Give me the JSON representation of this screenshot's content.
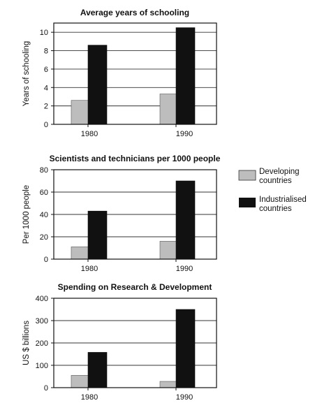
{
  "chart_data": [
    {
      "type": "bar",
      "title": "Average years of schooling",
      "xlabel": "",
      "ylabel": "Years of schooling",
      "categories": [
        "1980",
        "1990"
      ],
      "ylim": [
        0,
        11
      ],
      "yticks": [
        0,
        2,
        4,
        6,
        8,
        10
      ],
      "grid": true,
      "series": [
        {
          "name": "Developing countries",
          "values": [
            2.6,
            3.3
          ]
        },
        {
          "name": "Industrialised countries",
          "values": [
            8.6,
            10.5
          ]
        }
      ]
    },
    {
      "type": "bar",
      "title": "Scientists and technicians per 1000 people",
      "xlabel": "",
      "ylabel": "Per 1000 people",
      "categories": [
        "1980",
        "1990"
      ],
      "ylim": [
        0,
        80
      ],
      "yticks": [
        0,
        20,
        40,
        60,
        80
      ],
      "grid": true,
      "series": [
        {
          "name": "Developing countries",
          "values": [
            11,
            16
          ]
        },
        {
          "name": "Industrialised countries",
          "values": [
            43,
            70
          ]
        }
      ]
    },
    {
      "type": "bar",
      "title": "Spending on Research & Development",
      "xlabel": "",
      "ylabel": "US $ billions",
      "categories": [
        "1980",
        "1990"
      ],
      "ylim": [
        0,
        400
      ],
      "yticks": [
        0,
        100,
        200,
        300,
        400
      ],
      "grid": true,
      "series": [
        {
          "name": "Developing countries",
          "values": [
            55,
            28
          ]
        },
        {
          "name": "Industrialised countries",
          "values": [
            158,
            350
          ]
        }
      ]
    }
  ],
  "legend": {
    "placement": "right",
    "items": [
      {
        "label_line1": "Developing",
        "label_line2": "countries",
        "color": "#bdbdbd"
      },
      {
        "label_line1": "Industrialised",
        "label_line2": "countries",
        "color": "#111111"
      }
    ]
  },
  "colors": {
    "developing": "#bdbdbd",
    "industrialised": "#111111",
    "gridline": "#333333",
    "frame": "#111111"
  }
}
